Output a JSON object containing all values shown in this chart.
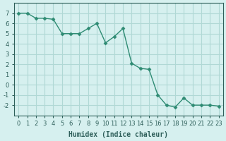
{
  "x": [
    0,
    1,
    2,
    3,
    4,
    5,
    6,
    7,
    8,
    9,
    10,
    11,
    12,
    13,
    14,
    15,
    16,
    17,
    18,
    19,
    20,
    21,
    22,
    23
  ],
  "y": [
    7.0,
    7.0,
    6.5,
    6.5,
    6.4,
    5.0,
    5.0,
    5.0,
    5.5,
    6.0,
    4.1,
    4.7,
    5.5,
    2.1,
    1.6,
    1.5,
    -1.0,
    -2.0,
    -2.2,
    -1.3,
    -2.0,
    -2.0,
    -2.0,
    -2.1
  ],
  "line_color": "#2e8b73",
  "marker_color": "#2e8b73",
  "bg_color": "#d6f0ef",
  "grid_color": "#b0d8d5",
  "xlabel": "Humidex (Indice chaleur)",
  "ylabel": "",
  "xlim": [
    -0.5,
    23.5
  ],
  "ylim": [
    -3,
    8
  ],
  "yticks": [
    -2,
    -1,
    0,
    1,
    2,
    3,
    4,
    5,
    6,
    7
  ],
  "xticks": [
    0,
    1,
    2,
    3,
    4,
    5,
    6,
    7,
    8,
    9,
    10,
    11,
    12,
    13,
    14,
    15,
    16,
    17,
    18,
    19,
    20,
    21,
    22,
    23
  ],
  "xtick_labels": [
    "0",
    "1",
    "2",
    "3",
    "4",
    "5",
    "6",
    "7",
    "8",
    "9",
    "10",
    "11",
    "12",
    "13",
    "14",
    "15",
    "16",
    "17",
    "18",
    "19",
    "20",
    "21",
    "22",
    "23"
  ],
  "font_color": "#2e5f5a",
  "title_fontsize": 8,
  "label_fontsize": 7,
  "tick_fontsize": 6
}
